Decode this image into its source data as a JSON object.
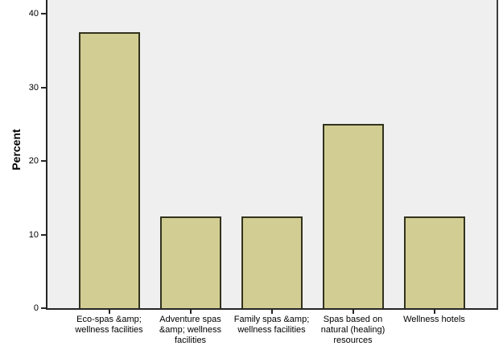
{
  "chart_data": {
    "type": "bar",
    "title": "",
    "categories": [
      "Eco-spas &amp;\nwellness facilities",
      "Adventure spas\n&amp; wellness\nfacilities",
      "Family spas &amp;\nwellness facilities",
      "Spas based on\nnatural (healing)\nresources",
      "Wellness hotels"
    ],
    "values": [
      37.5,
      12.5,
      12.5,
      25,
      12.5
    ],
    "xlabel": "",
    "ylabel": "Percent",
    "yticks": [
      0,
      10,
      20,
      30,
      40
    ],
    "ylim": [
      0,
      41.9
    ],
    "grid": false,
    "legend_position": "none",
    "bar_color": "#d2cd93",
    "bar_border_color": "#32321e",
    "plot_background": "#efefef",
    "axis_color": "#262626"
  }
}
